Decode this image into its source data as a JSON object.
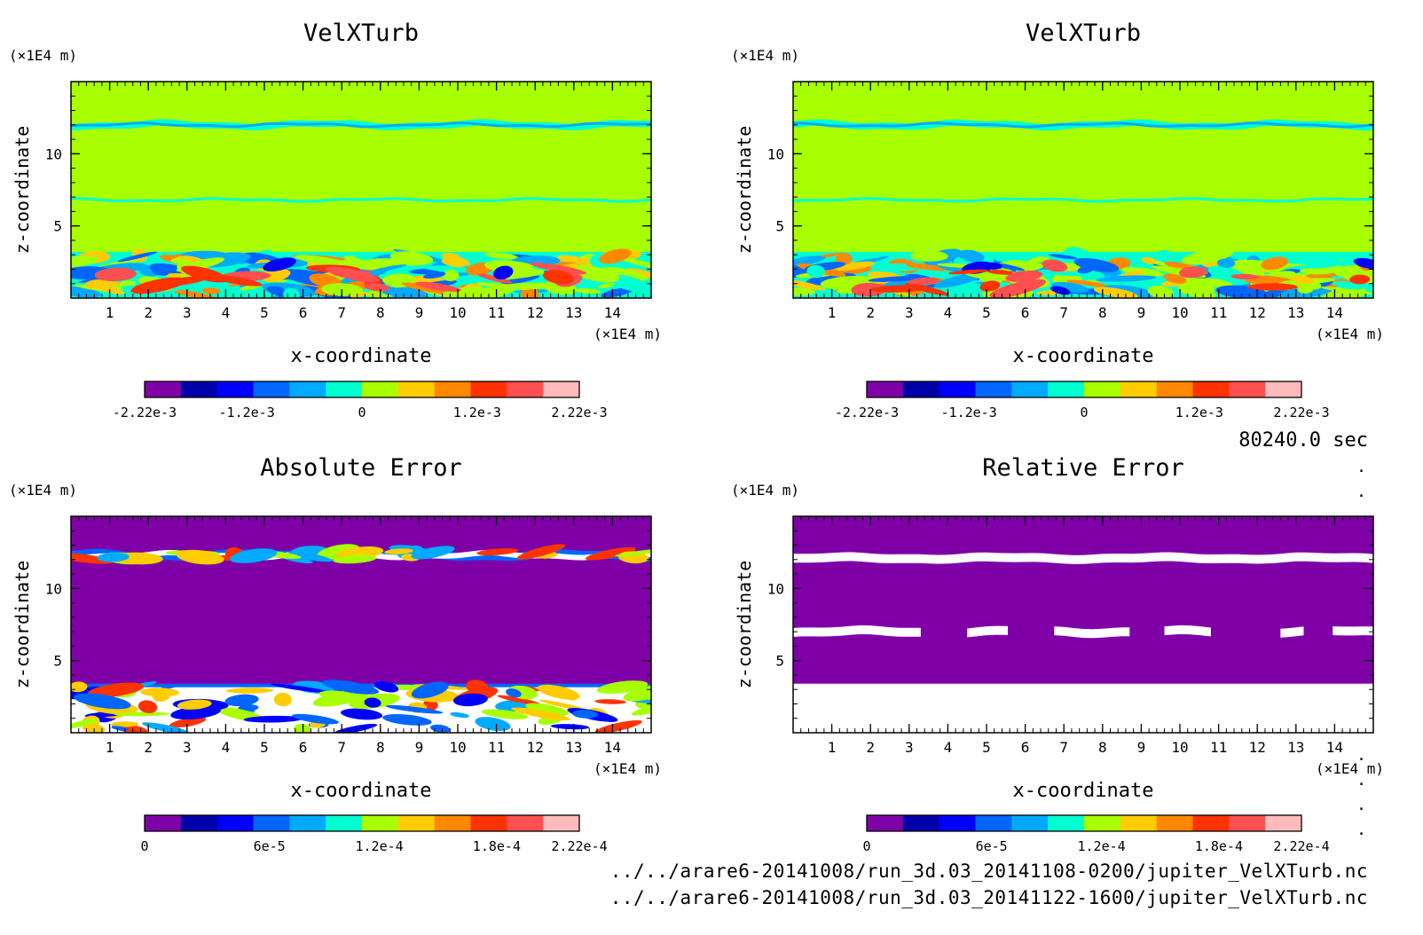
{
  "timestamp": "80240.0 sec",
  "files": [
    "../../arare6-20141008/run_3d.03_20141108-0200/jupiter_VelXTurb.nc",
    "../../arare6-20141008/run_3d.03_20141122-1600/jupiter_VelXTurb.nc"
  ],
  "colors": {
    "background_main": "#a8ff00",
    "background_error": "#8000a8",
    "palette_signed": [
      "#8000a8",
      "#0000a8",
      "#0000ff",
      "#0066ff",
      "#00aaff",
      "#00ffd0",
      "#a8ff00",
      "#ffcc00",
      "#ff8800",
      "#ff3300",
      "#ff4f4f",
      "#ffbbbb"
    ],
    "palette_abs": [
      "#8000a8",
      "#0000a8",
      "#0000ff",
      "#0066ff",
      "#00aaff",
      "#00ffd0",
      "#a8ff00",
      "#ffcc00",
      "#ff8800",
      "#ff3300",
      "#ff4f4f",
      "#ffbbbb"
    ]
  },
  "chart_data": [
    {
      "type": "heatmap",
      "title": "VelXTurb",
      "xlabel": "x-coordinate",
      "ylabel": "z-coordinate",
      "x_unit": "(×1E4 m)",
      "y_unit": "(×1E4 m)",
      "xticks": [
        "1",
        "2",
        "3",
        "4",
        "5",
        "6",
        "7",
        "8",
        "9",
        "10",
        "11",
        "12",
        "13",
        "14"
      ],
      "yticks": [
        "5",
        "10"
      ],
      "xlim": [
        0,
        15
      ],
      "ylim": [
        0,
        15
      ],
      "colorbar_labels": [
        "-2.22e-3",
        "-1.2e-3",
        "0",
        "1.2e-3",
        "2.22e-3"
      ],
      "clim": [
        -0.00222,
        0.00222
      ]
    },
    {
      "type": "heatmap",
      "title": "VelXTurb",
      "xlabel": "x-coordinate",
      "ylabel": "z-coordinate",
      "x_unit": "(×1E4 m)",
      "y_unit": "(×1E4 m)",
      "xticks": [
        "1",
        "2",
        "3",
        "4",
        "5",
        "6",
        "7",
        "8",
        "9",
        "10",
        "11",
        "12",
        "13",
        "14"
      ],
      "yticks": [
        "5",
        "10"
      ],
      "xlim": [
        0,
        15
      ],
      "ylim": [
        0,
        15
      ],
      "colorbar_labels": [
        "-2.22e-3",
        "-1.2e-3",
        "0",
        "1.2e-3",
        "2.22e-3"
      ],
      "clim": [
        -0.00222,
        0.00222
      ]
    },
    {
      "type": "heatmap",
      "title": "Absolute Error",
      "xlabel": "x-coordinate",
      "ylabel": "z-coordinate",
      "x_unit": "(×1E4 m)",
      "y_unit": "(×1E4 m)",
      "xticks": [
        "1",
        "2",
        "3",
        "4",
        "5",
        "6",
        "7",
        "8",
        "9",
        "10",
        "11",
        "12",
        "13",
        "14"
      ],
      "yticks": [
        "5",
        "10"
      ],
      "xlim": [
        0,
        15
      ],
      "ylim": [
        0,
        15
      ],
      "colorbar_labels": [
        "0",
        "6e-5",
        "1.2e-4",
        "1.8e-4",
        "2.22e-4"
      ],
      "clim": [
        0,
        0.000222
      ]
    },
    {
      "type": "heatmap",
      "title": "Relative Error",
      "xlabel": "x-coordinate",
      "ylabel": "z-coordinate",
      "x_unit": "(×1E4 m)",
      "y_unit": "(×1E4 m)",
      "xticks": [
        "1",
        "2",
        "3",
        "4",
        "5",
        "6",
        "7",
        "8",
        "9",
        "10",
        "11",
        "12",
        "13",
        "14"
      ],
      "yticks": [
        "5",
        "10"
      ],
      "xlim": [
        0,
        15
      ],
      "ylim": [
        0,
        15
      ],
      "colorbar_labels": [
        "0",
        "6e-5",
        "1.2e-4",
        "1.8e-4",
        "2.22e-4"
      ],
      "clim": [
        0,
        0.000222
      ]
    }
  ]
}
